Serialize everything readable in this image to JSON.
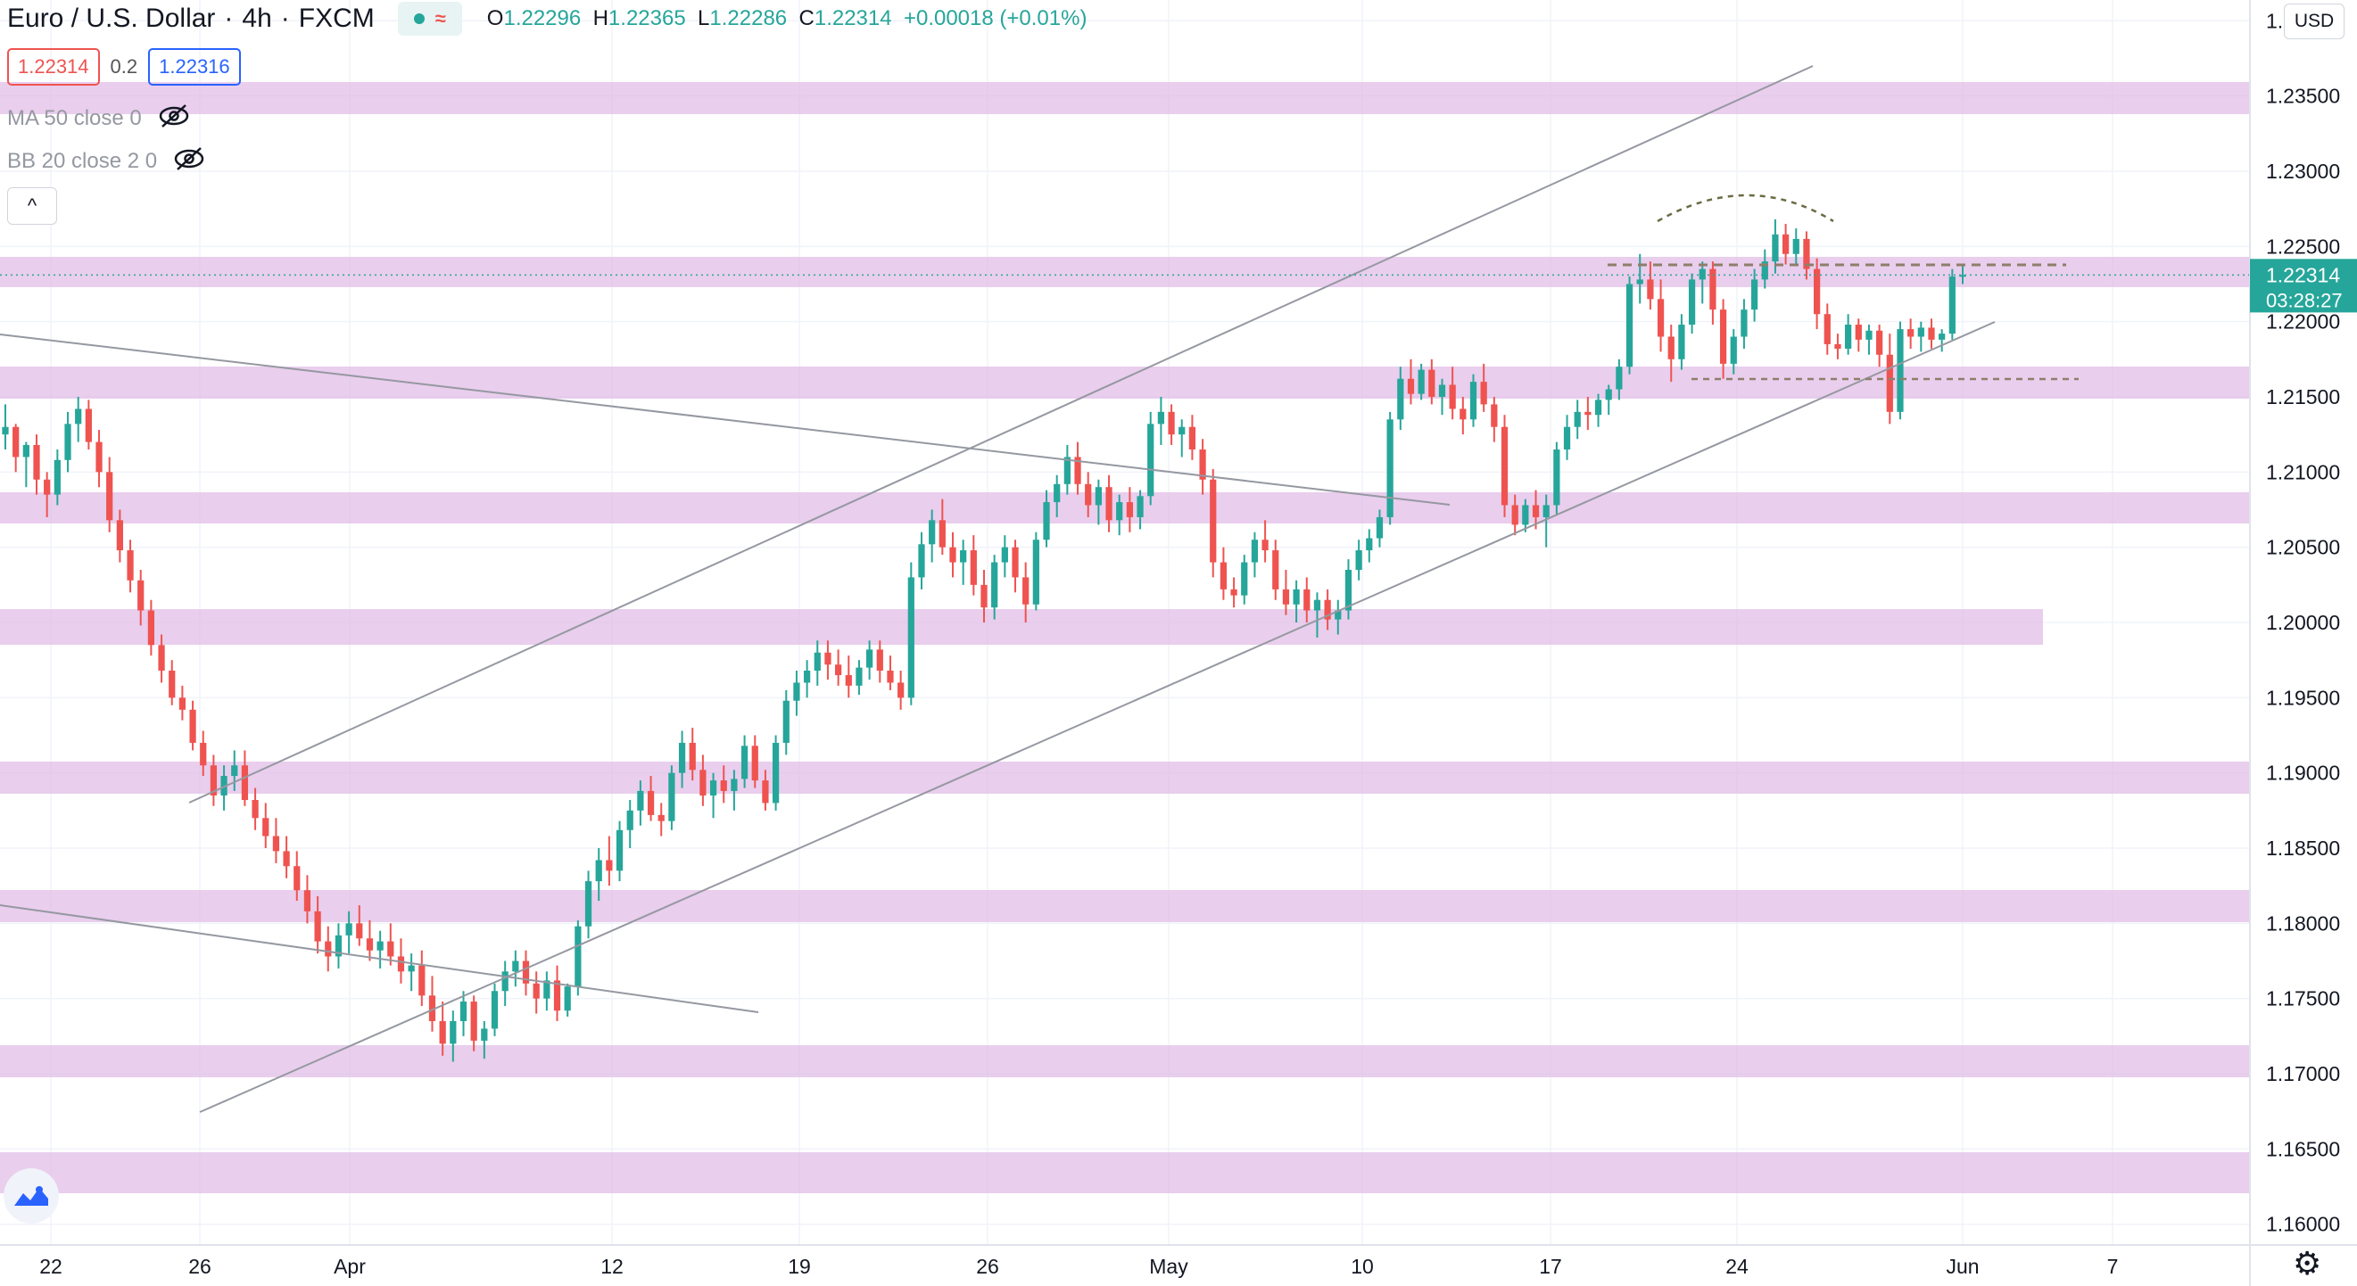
{
  "header": {
    "symbol": "Euro / U.S. Dollar",
    "timeframe": "4h",
    "exchange": "FXCM",
    "wave_icon": "≈",
    "ohlc": {
      "o_label": "O",
      "o": "1.22296",
      "h_label": "H",
      "h": "1.22365",
      "l_label": "L",
      "l": "1.22286",
      "c_label": "C",
      "c": "1.22314",
      "change": "+0.00018 (+0.01%)"
    }
  },
  "quote": {
    "bid": "1.22314",
    "spread": "0.2",
    "ask": "1.22316"
  },
  "indicators": [
    {
      "label": "MA 50 close 0",
      "icon": "eye-off-icon"
    },
    {
      "label": "BB 20 close 2 0",
      "icon": "eye-off-icon"
    }
  ],
  "collapse_icon": "^",
  "currency": "USD",
  "colors": {
    "up": "#26a69a",
    "down": "#ef5350",
    "zone": "#e1bee7",
    "line": "#9598a1",
    "dash": "#8d7f6b",
    "price_tag": "#26a69a",
    "grid": "#f0f3fa"
  },
  "price_tag": {
    "price": "1.22314",
    "countdown": "03:28:27"
  },
  "chart_data": {
    "type": "candlestick",
    "symbol": "EURUSD",
    "interval": "4h",
    "y_axis": {
      "min": 1.1585,
      "max": 1.2415,
      "ticks": [
        "1.24000",
        "1.23500",
        "1.23000",
        "1.22500",
        "1.22000",
        "1.21500",
        "1.21000",
        "1.20500",
        "1.20000",
        "1.19500",
        "1.19000",
        "1.18500",
        "1.18000",
        "1.17500",
        "1.17000",
        "1.16500",
        "1.16000"
      ]
    },
    "x_axis": {
      "ticks": [
        "22",
        "26",
        "Apr",
        "12",
        "19",
        "26",
        "May",
        "10",
        "17",
        "24",
        "Jun",
        "7"
      ]
    },
    "candles": [
      [
        1.2125,
        1.2145,
        1.2115,
        1.213
      ],
      [
        1.213,
        1.2132,
        1.21,
        1.211
      ],
      [
        1.211,
        1.212,
        1.209,
        1.2118
      ],
      [
        1.2118,
        1.2125,
        1.2085,
        1.2095
      ],
      [
        1.2095,
        1.21,
        1.207,
        1.2085
      ],
      [
        1.2085,
        1.2115,
        1.2078,
        1.2108
      ],
      [
        1.2108,
        1.214,
        1.21,
        1.2132
      ],
      [
        1.2132,
        1.215,
        1.212,
        1.2142
      ],
      [
        1.2142,
        1.2148,
        1.2115,
        1.212
      ],
      [
        1.212,
        1.2128,
        1.209,
        1.21
      ],
      [
        1.21,
        1.211,
        1.206,
        1.2068
      ],
      [
        1.2068,
        1.2075,
        1.204,
        1.2048
      ],
      [
        1.2048,
        1.2055,
        1.202,
        1.2028
      ],
      [
        1.2028,
        1.2035,
        1.1998,
        1.2008
      ],
      [
        1.2008,
        1.2015,
        1.1978,
        1.1985
      ],
      [
        1.1985,
        1.1992,
        1.196,
        1.1968
      ],
      [
        1.1968,
        1.1975,
        1.1945,
        1.195
      ],
      [
        1.195,
        1.1958,
        1.1935,
        1.1942
      ],
      [
        1.1942,
        1.1948,
        1.1915,
        1.192
      ],
      [
        1.192,
        1.1928,
        1.1898,
        1.1905
      ],
      [
        1.1905,
        1.1912,
        1.1878,
        1.1885
      ],
      [
        1.1885,
        1.1905,
        1.1875,
        1.1898
      ],
      [
        1.1898,
        1.1915,
        1.1888,
        1.1905
      ],
      [
        1.1905,
        1.1915,
        1.1878,
        1.1882
      ],
      [
        1.1882,
        1.189,
        1.1862,
        1.187
      ],
      [
        1.187,
        1.188,
        1.185,
        1.1858
      ],
      [
        1.1858,
        1.187,
        1.184,
        1.1848
      ],
      [
        1.1848,
        1.1858,
        1.183,
        1.1838
      ],
      [
        1.1838,
        1.1848,
        1.1815,
        1.1822
      ],
      [
        1.1822,
        1.1832,
        1.18,
        1.1808
      ],
      [
        1.1808,
        1.1818,
        1.178,
        1.1788
      ],
      [
        1.1788,
        1.1798,
        1.1768,
        1.1778
      ],
      [
        1.1778,
        1.18,
        1.177,
        1.1792
      ],
      [
        1.1792,
        1.1808,
        1.178,
        1.18
      ],
      [
        1.18,
        1.1812,
        1.1785,
        1.179
      ],
      [
        1.179,
        1.1802,
        1.1775,
        1.1782
      ],
      [
        1.1782,
        1.1795,
        1.177,
        1.1788
      ],
      [
        1.1788,
        1.18,
        1.1772,
        1.1778
      ],
      [
        1.1778,
        1.179,
        1.176,
        1.1768
      ],
      [
        1.1768,
        1.178,
        1.1755,
        1.1772
      ],
      [
        1.1772,
        1.1782,
        1.1745,
        1.1752
      ],
      [
        1.1752,
        1.1765,
        1.1728,
        1.1735
      ],
      [
        1.1735,
        1.1748,
        1.1712,
        1.172
      ],
      [
        1.172,
        1.1742,
        1.1708,
        1.1735
      ],
      [
        1.1735,
        1.1755,
        1.1725,
        1.1748
      ],
      [
        1.1748,
        1.1752,
        1.1715,
        1.1722
      ],
      [
        1.1722,
        1.1735,
        1.171,
        1.173
      ],
      [
        1.173,
        1.176,
        1.1725,
        1.1755
      ],
      [
        1.1755,
        1.1775,
        1.1745,
        1.1768
      ],
      [
        1.1768,
        1.1782,
        1.1758,
        1.1775
      ],
      [
        1.1775,
        1.1782,
        1.1752,
        1.176
      ],
      [
        1.176,
        1.1768,
        1.174,
        1.175
      ],
      [
        1.175,
        1.1768,
        1.1742,
        1.1762
      ],
      [
        1.1762,
        1.1772,
        1.1735,
        1.1742
      ],
      [
        1.1742,
        1.176,
        1.1738,
        1.1758
      ],
      [
        1.1758,
        1.1802,
        1.1752,
        1.1798
      ],
      [
        1.1798,
        1.1835,
        1.179,
        1.1828
      ],
      [
        1.1828,
        1.185,
        1.1815,
        1.1842
      ],
      [
        1.1842,
        1.1858,
        1.1825,
        1.1835
      ],
      [
        1.1835,
        1.1868,
        1.1828,
        1.1862
      ],
      [
        1.1862,
        1.1882,
        1.185,
        1.1875
      ],
      [
        1.1875,
        1.1895,
        1.1865,
        1.1888
      ],
      [
        1.1888,
        1.1898,
        1.1868,
        1.1872
      ],
      [
        1.1872,
        1.188,
        1.1858,
        1.1868
      ],
      [
        1.1868,
        1.1905,
        1.1862,
        1.19
      ],
      [
        1.19,
        1.1928,
        1.189,
        1.192
      ],
      [
        1.192,
        1.193,
        1.1895,
        1.1902
      ],
      [
        1.1902,
        1.1912,
        1.1878,
        1.1885
      ],
      [
        1.1885,
        1.19,
        1.187,
        1.1895
      ],
      [
        1.1895,
        1.1905,
        1.188,
        1.1888
      ],
      [
        1.1888,
        1.1902,
        1.1875,
        1.1896
      ],
      [
        1.1896,
        1.1925,
        1.189,
        1.1918
      ],
      [
        1.1918,
        1.1925,
        1.189,
        1.1895
      ],
      [
        1.1895,
        1.1902,
        1.1875,
        1.188
      ],
      [
        1.188,
        1.1925,
        1.1875,
        1.192
      ],
      [
        1.192,
        1.1955,
        1.1912,
        1.1948
      ],
      [
        1.1948,
        1.1968,
        1.1938,
        1.196
      ],
      [
        1.196,
        1.1975,
        1.195,
        1.1968
      ],
      [
        1.1968,
        1.1988,
        1.1958,
        1.198
      ],
      [
        1.198,
        1.1988,
        1.1962,
        1.1972
      ],
      [
        1.1972,
        1.1982,
        1.1958,
        1.1965
      ],
      [
        1.1965,
        1.1978,
        1.195,
        1.1958
      ],
      [
        1.1958,
        1.1975,
        1.1952,
        1.197
      ],
      [
        1.197,
        1.1988,
        1.1962,
        1.1982
      ],
      [
        1.1982,
        1.1988,
        1.196,
        1.1968
      ],
      [
        1.1968,
        1.1978,
        1.1955,
        1.196
      ],
      [
        1.196,
        1.1968,
        1.1942,
        1.195
      ],
      [
        1.195,
        1.204,
        1.1945,
        1.203
      ],
      [
        1.203,
        1.206,
        1.2022,
        1.2052
      ],
      [
        1.2052,
        1.2075,
        1.204,
        1.2068
      ],
      [
        1.2068,
        1.2082,
        1.2045,
        1.205
      ],
      [
        1.205,
        1.206,
        1.203,
        1.204
      ],
      [
        1.204,
        1.2055,
        1.2025,
        1.2048
      ],
      [
        1.2048,
        1.2058,
        1.2018,
        1.2025
      ],
      [
        1.2025,
        1.2035,
        1.2,
        1.201
      ],
      [
        1.201,
        1.2045,
        1.2002,
        1.204
      ],
      [
        1.204,
        1.2058,
        1.203,
        1.205
      ],
      [
        1.205,
        1.2055,
        1.202,
        1.203
      ],
      [
        1.203,
        1.204,
        1.2,
        1.2012
      ],
      [
        1.2012,
        1.206,
        1.2008,
        1.2055
      ],
      [
        1.2055,
        1.2088,
        1.205,
        1.208
      ],
      [
        1.208,
        1.2098,
        1.207,
        1.2092
      ],
      [
        1.2092,
        1.2118,
        1.2085,
        1.211
      ],
      [
        1.211,
        1.212,
        1.2085,
        1.2092
      ],
      [
        1.2092,
        1.21,
        1.207,
        1.2078
      ],
      [
        1.2078,
        1.2095,
        1.2065,
        1.209
      ],
      [
        1.209,
        1.2098,
        1.206,
        1.2068
      ],
      [
        1.2068,
        1.2085,
        1.2058,
        1.208
      ],
      [
        1.208,
        1.209,
        1.206,
        1.207
      ],
      [
        1.207,
        1.2088,
        1.2062,
        1.2084
      ],
      [
        1.2084,
        1.214,
        1.2078,
        1.2132
      ],
      [
        1.2132,
        1.215,
        1.2118,
        1.214
      ],
      [
        1.214,
        1.2145,
        1.2118,
        1.2125
      ],
      [
        1.2125,
        1.2135,
        1.211,
        1.213
      ],
      [
        1.213,
        1.2138,
        1.2108,
        1.2115
      ],
      [
        1.2115,
        1.2122,
        1.2085,
        1.2095
      ],
      [
        1.2095,
        1.2102,
        1.203,
        1.204
      ],
      [
        1.204,
        1.205,
        1.2015,
        1.2022
      ],
      [
        1.2022,
        1.203,
        1.201,
        1.2018
      ],
      [
        1.2018,
        1.2045,
        1.2012,
        1.204
      ],
      [
        1.204,
        1.206,
        1.203,
        1.2055
      ],
      [
        1.2055,
        1.2068,
        1.204,
        1.2048
      ],
      [
        1.2048,
        1.2055,
        1.2015,
        1.2022
      ],
      [
        1.2022,
        1.2035,
        1.2005,
        1.2012
      ],
      [
        1.2012,
        1.2028,
        1.2,
        1.2022
      ],
      [
        1.2022,
        1.203,
        1.2,
        1.2008
      ],
      [
        1.2008,
        1.202,
        1.199,
        1.2015
      ],
      [
        1.2015,
        1.2022,
        1.1995,
        1.2002
      ],
      [
        1.2002,
        1.2015,
        1.1992,
        1.2008
      ],
      [
        1.2008,
        1.2042,
        1.2002,
        1.2035
      ],
      [
        1.2035,
        1.2055,
        1.2028,
        1.2048
      ],
      [
        1.2048,
        1.2062,
        1.204,
        1.2056
      ],
      [
        1.2056,
        1.2075,
        1.205,
        1.207
      ],
      [
        1.207,
        1.214,
        1.2065,
        1.2135
      ],
      [
        1.2135,
        1.217,
        1.2128,
        1.2162
      ],
      [
        1.2162,
        1.2175,
        1.2145,
        1.2152
      ],
      [
        1.2152,
        1.2172,
        1.2148,
        1.2168
      ],
      [
        1.2168,
        1.2175,
        1.2145,
        1.215
      ],
      [
        1.215,
        1.2162,
        1.2138,
        1.2158
      ],
      [
        1.2158,
        1.217,
        1.2135,
        1.2142
      ],
      [
        1.2142,
        1.215,
        1.2125,
        1.2135
      ],
      [
        1.2135,
        1.2165,
        1.213,
        1.216
      ],
      [
        1.216,
        1.2172,
        1.214,
        1.2145
      ],
      [
        1.2145,
        1.215,
        1.212,
        1.213
      ],
      [
        1.213,
        1.2138,
        1.207,
        1.2078
      ],
      [
        1.2078,
        1.2085,
        1.2058,
        1.2065
      ],
      [
        1.2065,
        1.2082,
        1.206,
        1.2078
      ],
      [
        1.2078,
        1.2088,
        1.2062,
        1.207
      ],
      [
        1.207,
        1.2085,
        1.205,
        1.2078
      ],
      [
        1.2078,
        1.212,
        1.2072,
        1.2115
      ],
      [
        1.2115,
        1.2138,
        1.2108,
        1.213
      ],
      [
        1.213,
        1.2148,
        1.2122,
        1.214
      ],
      [
        1.214,
        1.215,
        1.2128,
        1.2138
      ],
      [
        1.2138,
        1.2152,
        1.213,
        1.2148
      ],
      [
        1.2148,
        1.2158,
        1.2138,
        1.2155
      ],
      [
        1.2155,
        1.2175,
        1.2148,
        1.217
      ],
      [
        1.217,
        1.223,
        1.2165,
        1.2225
      ],
      [
        1.2225,
        1.2245,
        1.2212,
        1.2228
      ],
      [
        1.2228,
        1.224,
        1.2208,
        1.2215
      ],
      [
        1.2215,
        1.2228,
        1.218,
        1.219
      ],
      [
        1.219,
        1.2198,
        1.216,
        1.2175
      ],
      [
        1.2175,
        1.2205,
        1.2168,
        1.2198
      ],
      [
        1.2198,
        1.2232,
        1.2192,
        1.2228
      ],
      [
        1.2228,
        1.224,
        1.2212,
        1.2235
      ],
      [
        1.2235,
        1.224,
        1.2198,
        1.2208
      ],
      [
        1.2208,
        1.2215,
        1.2162,
        1.2172
      ],
      [
        1.2172,
        1.2195,
        1.2165,
        1.219
      ],
      [
        1.219,
        1.2215,
        1.2182,
        1.2208
      ],
      [
        1.2208,
        1.2235,
        1.22,
        1.2228
      ],
      [
        1.2228,
        1.2248,
        1.2222,
        1.224
      ],
      [
        1.224,
        1.2268,
        1.2232,
        1.2258
      ],
      [
        1.2258,
        1.2265,
        1.2238,
        1.2245
      ],
      [
        1.2245,
        1.2262,
        1.2238,
        1.2255
      ],
      [
        1.2255,
        1.226,
        1.2228,
        1.2235
      ],
      [
        1.2235,
        1.2242,
        1.2195,
        1.2205
      ],
      [
        1.2205,
        1.2212,
        1.2178,
        1.2185
      ],
      [
        1.2185,
        1.2192,
        1.2175,
        1.2182
      ],
      [
        1.2182,
        1.2205,
        1.2178,
        1.2198
      ],
      [
        1.2198,
        1.2202,
        1.218,
        1.2188
      ],
      [
        1.2188,
        1.2198,
        1.2178,
        1.2194
      ],
      [
        1.2194,
        1.2198,
        1.217,
        1.2178
      ],
      [
        1.2178,
        1.2192,
        1.2132,
        1.214
      ],
      [
        1.214,
        1.22,
        1.2135,
        1.2195
      ],
      [
        1.2195,
        1.2202,
        1.2182,
        1.219
      ],
      [
        1.219,
        1.22,
        1.218,
        1.2196
      ],
      [
        1.2196,
        1.2202,
        1.2182,
        1.2188
      ],
      [
        1.2188,
        1.2195,
        1.218,
        1.2192
      ],
      [
        1.2192,
        1.2235,
        1.2188,
        1.223
      ],
      [
        1.223,
        1.2238,
        1.2225,
        1.2231
      ]
    ]
  }
}
